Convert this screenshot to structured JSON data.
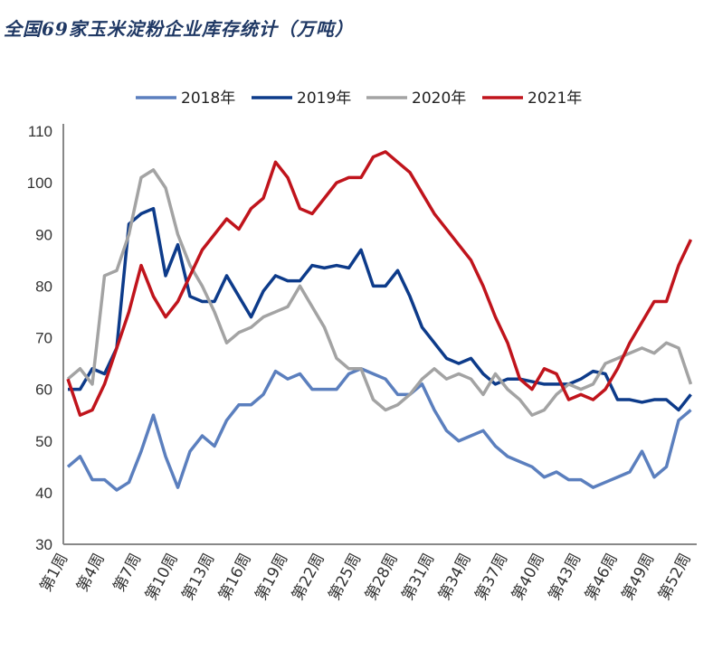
{
  "chart_data": {
    "type": "line",
    "title": "全国69家玉米淀粉企业库存统计（万吨）",
    "xlabel": "",
    "ylabel": "",
    "ylim": [
      30,
      110
    ],
    "yticks": [
      30,
      40,
      50,
      60,
      70,
      80,
      90,
      100,
      110
    ],
    "x": [
      1,
      2,
      3,
      4,
      5,
      6,
      7,
      8,
      9,
      10,
      11,
      12,
      13,
      14,
      15,
      16,
      17,
      18,
      19,
      20,
      21,
      22,
      23,
      24,
      25,
      26,
      27,
      28,
      29,
      30,
      31,
      32,
      33,
      34,
      35,
      36,
      37,
      38,
      39,
      40,
      41,
      42,
      43,
      44,
      45,
      46,
      47,
      48,
      49,
      50,
      51,
      52
    ],
    "xtick_labels": [
      "第1周",
      "第4周",
      "第7周",
      "第10周",
      "第13周",
      "第16周",
      "第19周",
      "第22周",
      "第25周",
      "第28周",
      "第31周",
      "第34周",
      "第37周",
      "第40周",
      "第43周",
      "第46周",
      "第49周",
      "第52周"
    ],
    "grid": false,
    "legend_position": "top",
    "series": [
      {
        "name": "2018年",
        "color": "#5b7fbe",
        "values": [
          45,
          47,
          42.5,
          42.5,
          40.5,
          42,
          48,
          55,
          47,
          41,
          48,
          51,
          49,
          54,
          57,
          57,
          59,
          63.5,
          62,
          63,
          60,
          60,
          60,
          63,
          64,
          63,
          62,
          59,
          59,
          61,
          56,
          52,
          50,
          51,
          52,
          49,
          47,
          46,
          45,
          43,
          44,
          42.5,
          42.5,
          41,
          42,
          43,
          44,
          48,
          43,
          45,
          54,
          56
        ]
      },
      {
        "name": "2019年",
        "color": "#0d3b8a",
        "values": [
          60,
          60,
          64,
          63,
          68,
          92,
          94,
          95,
          82,
          88,
          78,
          77,
          77,
          82,
          78,
          74,
          79,
          82,
          81,
          81,
          84,
          83.5,
          84,
          83.5,
          87,
          80,
          80,
          83,
          78,
          72,
          69,
          66,
          65,
          66,
          63,
          61,
          62,
          62,
          61.5,
          61,
          61,
          61,
          62,
          63.5,
          63,
          58,
          58,
          57.5,
          58,
          58,
          56,
          59
        ]
      },
      {
        "name": "2020年",
        "color": "#a3a3a3",
        "values": [
          62,
          64,
          61,
          82,
          83,
          90,
          101,
          102.5,
          99,
          90,
          84,
          80,
          75,
          69,
          71,
          72,
          74,
          75,
          76,
          80,
          76,
          72,
          66,
          64,
          64,
          58,
          56,
          57,
          59,
          62,
          64,
          62,
          63,
          62,
          59,
          63,
          60,
          58,
          55,
          56,
          59,
          61,
          60,
          61,
          65,
          66,
          67,
          68,
          67,
          69,
          68,
          61
        ]
      },
      {
        "name": "2021年",
        "color": "#c0141c",
        "values": [
          62,
          55,
          56,
          61,
          68,
          75,
          84,
          78,
          74,
          77,
          82,
          87,
          90,
          93,
          91,
          95,
          97,
          104,
          101,
          95,
          94,
          97,
          100,
          101,
          101,
          105,
          106,
          104,
          102,
          98,
          94,
          91,
          88,
          85,
          80,
          74,
          69,
          62,
          60,
          64,
          63,
          58,
          59,
          58,
          60,
          64,
          69,
          73,
          77,
          77,
          84,
          89
        ]
      }
    ]
  }
}
